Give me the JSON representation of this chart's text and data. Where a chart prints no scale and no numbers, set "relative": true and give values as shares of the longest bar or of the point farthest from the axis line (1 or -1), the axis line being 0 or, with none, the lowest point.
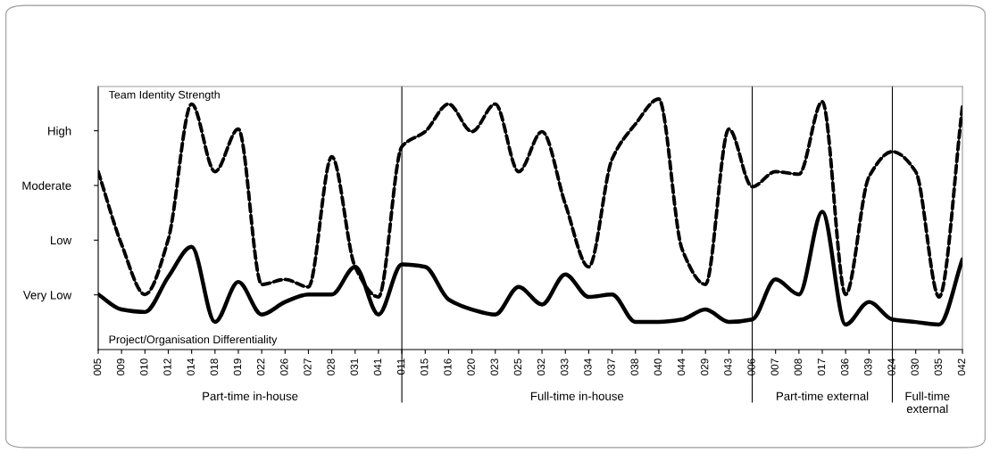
{
  "chart_data": {
    "type": "line",
    "relative": true,
    "categories": [
      "005",
      "009",
      "010",
      "012",
      "014",
      "018",
      "019",
      "022",
      "026",
      "027",
      "028",
      "031",
      "041",
      "011",
      "015",
      "016",
      "020",
      "023",
      "025",
      "032",
      "033",
      "034",
      "037",
      "038",
      "040",
      "044",
      "029",
      "043",
      "006",
      "007",
      "008",
      "017",
      "036",
      "039",
      "024",
      "030",
      "035",
      "042"
    ],
    "series": [
      {
        "color": "#000000",
        "line_style": "solid",
        "values": [
          0.71,
          0.42,
          0.22,
          0.44,
          0.98,
          0.71,
          0.88,
          0.26,
          0.28,
          0.25,
          0.77,
          0.33,
          0.21,
          0.81,
          0.87,
          0.98,
          0.87,
          0.98,
          0.71,
          0.87,
          0.58,
          0.33,
          0.76,
          0.9,
          1.0,
          0.4,
          0.26,
          0.88,
          0.65,
          0.71,
          0.7,
          0.99,
          0.22,
          0.69,
          0.79,
          0.71,
          0.21,
          0.97
        ]
      },
      {
        "name": "Team Identity Strength",
        "color": "#000000",
        "line_style": "dashed",
        "values": [
          0.71,
          0.42,
          0.22,
          0.44,
          0.98,
          0.71,
          0.88,
          0.26,
          0.28,
          0.25,
          0.77,
          0.33,
          0.21,
          0.81,
          0.87,
          0.98,
          0.87,
          0.98,
          0.71,
          0.87,
          0.58,
          0.33,
          0.76,
          0.9,
          1.0,
          0.4,
          0.26,
          0.88,
          0.65,
          0.71,
          0.7,
          0.99,
          0.22,
          0.69,
          0.79,
          0.71,
          0.21,
          0.97
        ]
      },
      {
        "name": "Project/Organisation Differentiality",
        "color": "#000000",
        "line_style": "solid",
        "values": [
          0.22,
          0.16,
          0.15,
          0.29,
          0.41,
          0.11,
          0.27,
          0.14,
          0.19,
          0.22,
          0.22,
          0.33,
          0.14,
          0.34,
          0.33,
          0.2,
          0.16,
          0.14,
          0.25,
          0.18,
          0.3,
          0.21,
          0.22,
          0.11,
          0.11,
          0.12,
          0.16,
          0.11,
          0.12,
          0.28,
          0.22,
          0.55,
          0.1,
          0.19,
          0.12,
          0.11,
          0.1,
          0.36
        ]
      }
    ],
    "ref_lines": [
      {
        "axis": "x",
        "value": "011"
      },
      {
        "axis": "x",
        "value": "006"
      },
      {
        "axis": "x",
        "value": "024"
      }
    ],
    "y_categories": [
      "High",
      "Moderate",
      "Low",
      "Very Low"
    ],
    "annotations": [
      "Part-time in-house",
      "Full-time in-house",
      "Part-time external",
      "Full-time\nexternal"
    ],
    "grid": false,
    "legend": false,
    "marker": "none"
  }
}
